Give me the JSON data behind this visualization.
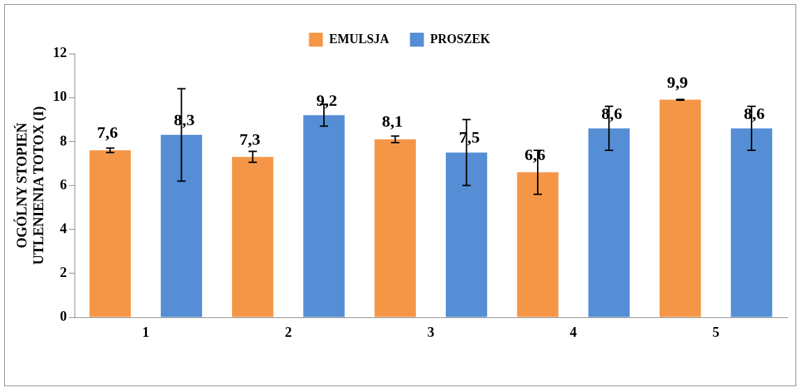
{
  "chart_data": {
    "type": "bar",
    "ylabel": "OGÓLNY STOPIEŃ\nUTLENIENIA TOTOX (I)",
    "categories": [
      "1",
      "2",
      "3",
      "4",
      "5"
    ],
    "series": [
      {
        "name": "EMULSJA",
        "color": "#f59647",
        "values": [
          7.6,
          7.3,
          8.1,
          6.6,
          9.9
        ],
        "errors": [
          0.1,
          0.25,
          0.15,
          1.0,
          0.02
        ],
        "value_labels": [
          "7,6",
          "7,3",
          "8,1",
          "6,6",
          "9,9"
        ]
      },
      {
        "name": "PROSZEK",
        "color": "#558ed5",
        "values": [
          8.3,
          9.2,
          7.5,
          8.6,
          8.6
        ],
        "errors": [
          2.1,
          0.5,
          1.5,
          1.0,
          1.0
        ],
        "value_labels": [
          "8,3",
          "9,2",
          "7,5",
          "8,6",
          "8,6"
        ]
      }
    ],
    "ylim": [
      0,
      12
    ],
    "yticks": [
      0,
      2,
      4,
      6,
      8,
      10,
      12
    ],
    "grid": false,
    "legend": "top"
  }
}
